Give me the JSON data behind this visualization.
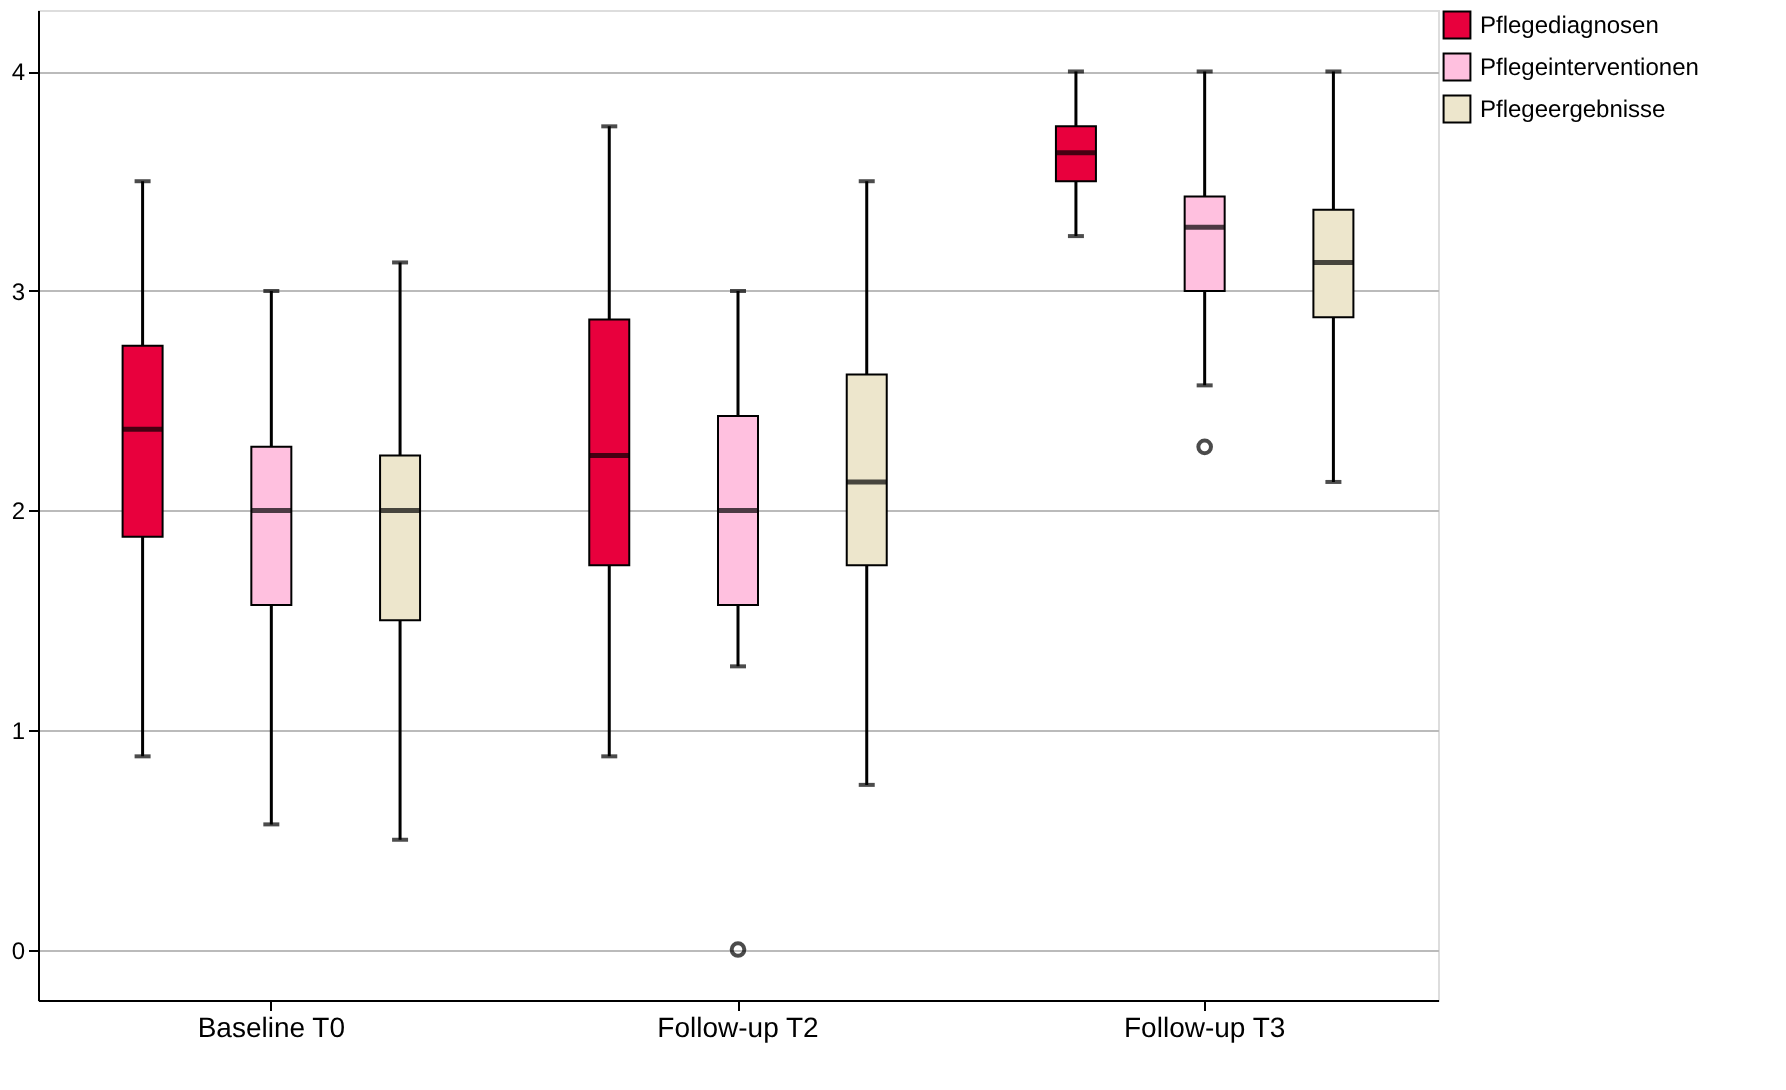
{
  "chart_data": {
    "type": "box",
    "categories": [
      "Baseline T0",
      "Follow-up T2",
      "Follow-up T3"
    ],
    "ylim": [
      -0.23,
      4.28
    ],
    "yticks": [
      0,
      1,
      2,
      3,
      4
    ],
    "grid": "y",
    "legend": "top right",
    "series": [
      {
        "name": "Pflegediagnosen",
        "color": "#e8003d",
        "boxes": [
          {
            "low": 0.88,
            "q1": 1.88,
            "median": 2.37,
            "q3": 2.75,
            "high": 3.5
          },
          {
            "low": 0.88,
            "q1": 1.75,
            "median": 2.25,
            "q3": 2.87,
            "high": 3.75
          },
          {
            "low": 3.25,
            "q1": 3.5,
            "median": 3.63,
            "q3": 3.75,
            "high": 4.0
          }
        ]
      },
      {
        "name": "Pflegeinterventionen",
        "color": "#ffc0df",
        "boxes": [
          {
            "low": 0.57,
            "q1": 1.57,
            "median": 2.0,
            "q3": 2.29,
            "high": 3.0
          },
          {
            "low": 1.29,
            "q1": 1.57,
            "median": 2.0,
            "q3": 2.43,
            "high": 3.0,
            "outliers": [
              0
            ]
          },
          {
            "low": 2.57,
            "q1": 3.0,
            "median": 3.29,
            "q3": 3.43,
            "high": 4.0,
            "outliers": [
              2.29
            ]
          }
        ]
      },
      {
        "name": "Pflegeergebnisse",
        "color": "#ede6cc",
        "boxes": [
          {
            "low": 0.5,
            "q1": 1.5,
            "median": 2.0,
            "q3": 2.25,
            "high": 3.13
          },
          {
            "low": 0.75,
            "q1": 1.75,
            "median": 2.13,
            "q3": 2.62,
            "high": 3.5
          },
          {
            "low": 2.13,
            "q1": 2.88,
            "median": 3.13,
            "q3": 3.37,
            "high": 4.0
          }
        ]
      }
    ]
  }
}
